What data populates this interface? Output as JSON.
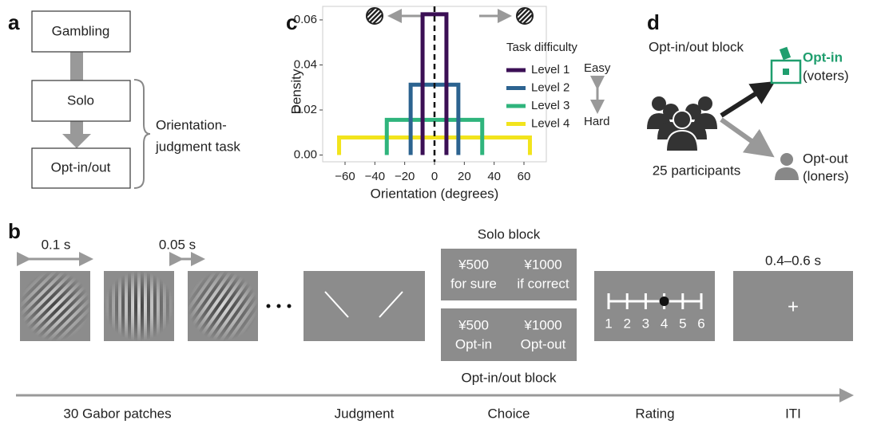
{
  "panel_labels": [
    "a",
    "b",
    "c",
    "d"
  ],
  "panel_a": {
    "steps": [
      "Gambling",
      "Solo",
      "Opt-in/out"
    ],
    "brace_label": [
      "Orientation-",
      "judgment task"
    ]
  },
  "panel_b": {
    "durations": [
      "0.1 s",
      "0.05 s",
      "0.4–0.6 s"
    ],
    "solo_block": {
      "title": "Solo block",
      "options": [
        [
          "¥500",
          "for sure"
        ],
        [
          "¥1000",
          "if correct"
        ]
      ]
    },
    "optin_block": {
      "title": "Opt-in/out block",
      "options": [
        [
          "¥500",
          "Opt-in"
        ],
        [
          "¥1000",
          "Opt-out"
        ]
      ]
    },
    "rating_scale": [
      1,
      2,
      3,
      4,
      5,
      6
    ],
    "fixation": "+",
    "timeline": [
      "30 Gabor patches",
      "Judgment",
      "Choice",
      "Rating",
      "ITI"
    ]
  },
  "chart_data": {
    "type": "line",
    "x_label": "Orientation (degrees)",
    "y_label": "Density",
    "legend_title": "Task difficulty",
    "annotations": [
      "Easy",
      "Hard"
    ],
    "reference_line": 0,
    "series": [
      {
        "name": "Level 1",
        "color": "#3b0f55",
        "x": [
          -8,
          -8,
          8,
          8
        ],
        "values": [
          0,
          0.0625,
          0.0625,
          0
        ]
      },
      {
        "name": "Level 2",
        "color": "#2c6390",
        "x": [
          -16,
          -16,
          16,
          16
        ],
        "values": [
          0,
          0.03125,
          0.03125,
          0
        ]
      },
      {
        "name": "Level 3",
        "color": "#2fb47c",
        "x": [
          -32,
          -32,
          32,
          32
        ],
        "values": [
          0,
          0.015625,
          0.015625,
          0
        ]
      },
      {
        "name": "Level 4",
        "color": "#f2e41c",
        "x": [
          -64,
          -64,
          64,
          64
        ],
        "values": [
          0,
          0.0078125,
          0.0078125,
          0
        ]
      }
    ],
    "xlim": [
      -75,
      75
    ],
    "ylim": [
      -0.003,
      0.066
    ],
    "xticks": [
      {
        "value": -60,
        "label": "−60"
      },
      {
        "value": -40,
        "label": "−40"
      },
      {
        "value": -20,
        "label": "−20"
      },
      0,
      20,
      40,
      60
    ],
    "yticks": [
      {
        "value": 0,
        "label": "0.00"
      },
      0.02,
      0.04,
      0.06
    ]
  },
  "panel_d": {
    "title": "Opt-in/out block",
    "participants": "25 participants",
    "opt_in": [
      "Opt-in",
      "(voters)"
    ],
    "opt_out": [
      "Opt-out",
      "(loners)"
    ]
  }
}
